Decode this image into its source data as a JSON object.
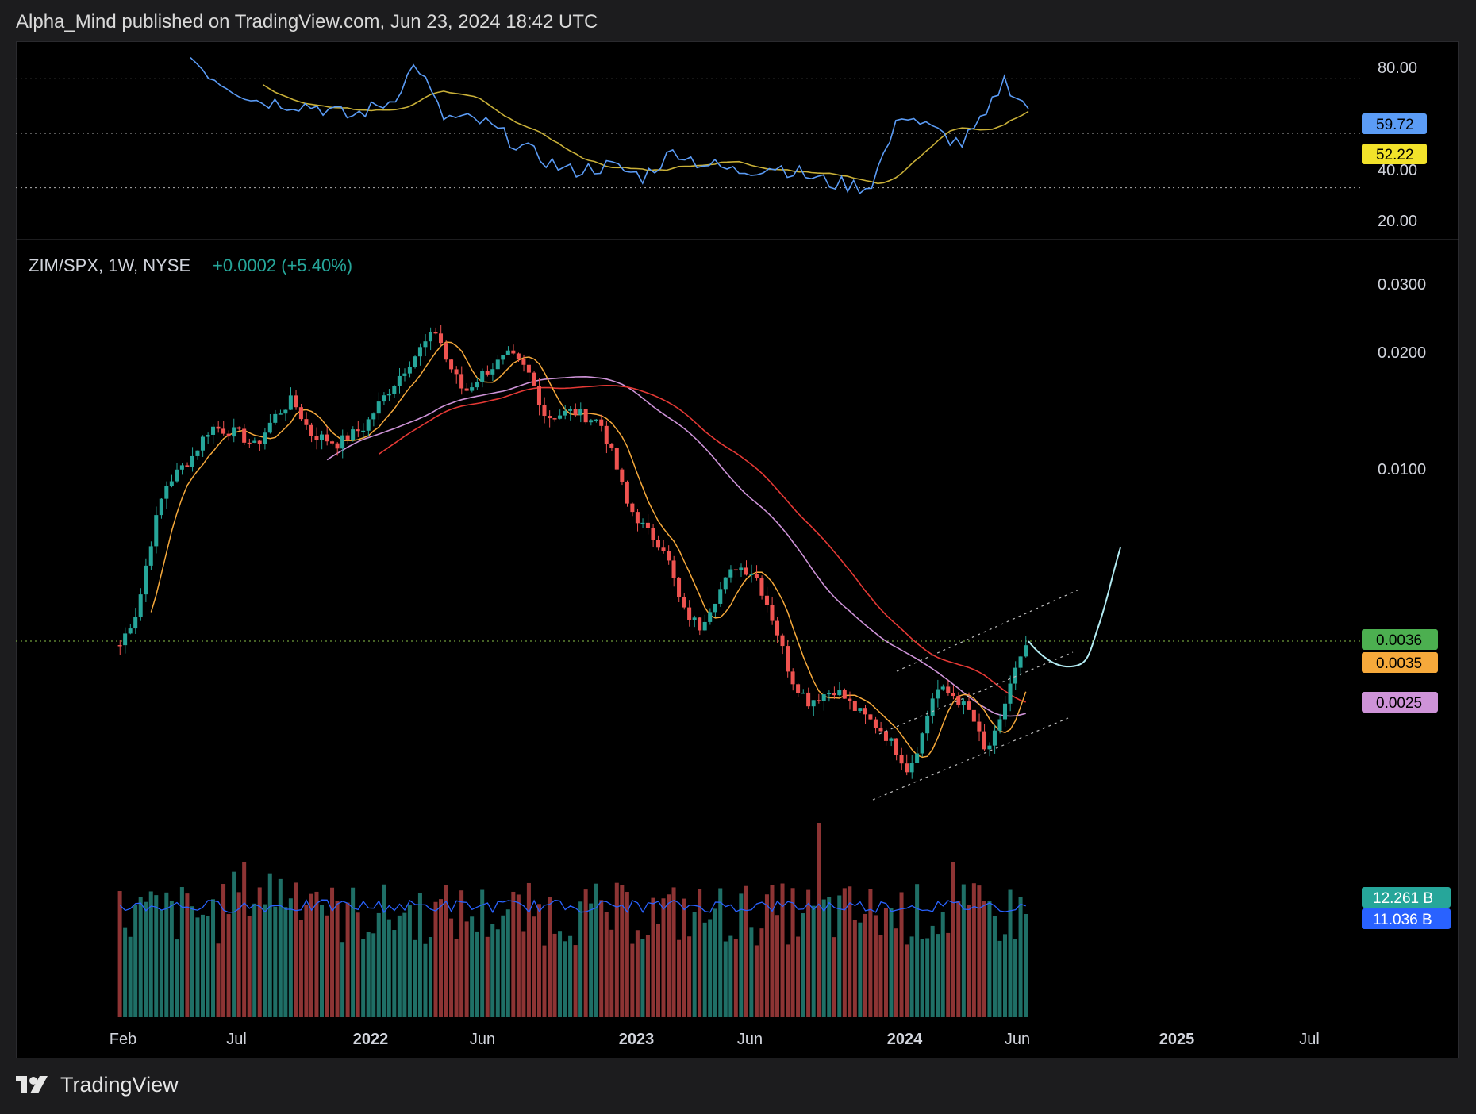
{
  "header": {
    "text": "Alpha_Mind published on TradingView.com, Jun 23, 2024 18:42 UTC"
  },
  "footer": {
    "brand": "TradingView"
  },
  "legend": {
    "symbol": "ZIM/SPX, 1W, NYSE",
    "change": "+0.0002 (+5.40%)",
    "change_color": "#26a69a"
  },
  "rsi_pane": {
    "ticks": [
      "80.00",
      "40.00",
      "20.00"
    ],
    "badges": [
      {
        "label": "59.72",
        "bg": "#5b9cf6",
        "fg": "#000000"
      },
      {
        "label": "52.22",
        "bg": "#f2e22a",
        "fg": "#000000"
      }
    ]
  },
  "price_pane": {
    "ticks": [
      "0.0300",
      "0.0200",
      "0.0100"
    ],
    "badges": [
      {
        "label": "0.0036",
        "bg": "#4caf50",
        "fg": "#000000"
      },
      {
        "label": "0.0035",
        "bg": "#f6a93b",
        "fg": "#000000"
      },
      {
        "label": "0.0025",
        "bg": "#ce93d8",
        "fg": "#000000"
      }
    ]
  },
  "volume_pane": {
    "badges": [
      {
        "label": "12.261 B",
        "bg": "#26a69a",
        "fg": "#ffffff"
      },
      {
        "label": "11.036 B",
        "bg": "#2962ff",
        "fg": "#ffffff"
      }
    ]
  },
  "time_axis": {
    "labels": [
      {
        "text": "Feb",
        "bold": false
      },
      {
        "text": "Jul",
        "bold": false
      },
      {
        "text": "2022",
        "bold": true
      },
      {
        "text": "Jun",
        "bold": false
      },
      {
        "text": "2023",
        "bold": true
      },
      {
        "text": "Jun",
        "bold": false
      },
      {
        "text": "2024",
        "bold": true
      },
      {
        "text": "Jun",
        "bold": false
      },
      {
        "text": "2025",
        "bold": true
      },
      {
        "text": "Jul",
        "bold": false
      }
    ]
  },
  "colors": {
    "up": "#26a69a",
    "down": "#ef5350",
    "rsi": "#5b9cf6",
    "rsi_ma": "#c9b038",
    "ema_fast": "#f6a93b",
    "ema_slow": "#e53935",
    "sma": "#ce93d8",
    "projection": "#b2ebf2"
  },
  "chart_data": {
    "type": "line",
    "series": [
      {
        "name": "",
        "x": [
          "2021-02",
          "2021-07",
          "2022-01",
          "2022-06",
          "2023-01",
          "2023-06",
          "2024-01",
          "2024-06"
        ],
        "values": [
          0.004,
          0.011,
          0.0175,
          0.015,
          0.0065,
          0.0032,
          0.0022,
          0.0036
        ]
      }
    ],
    "ylim": [
      0.0018,
      0.032
    ]
  }
}
